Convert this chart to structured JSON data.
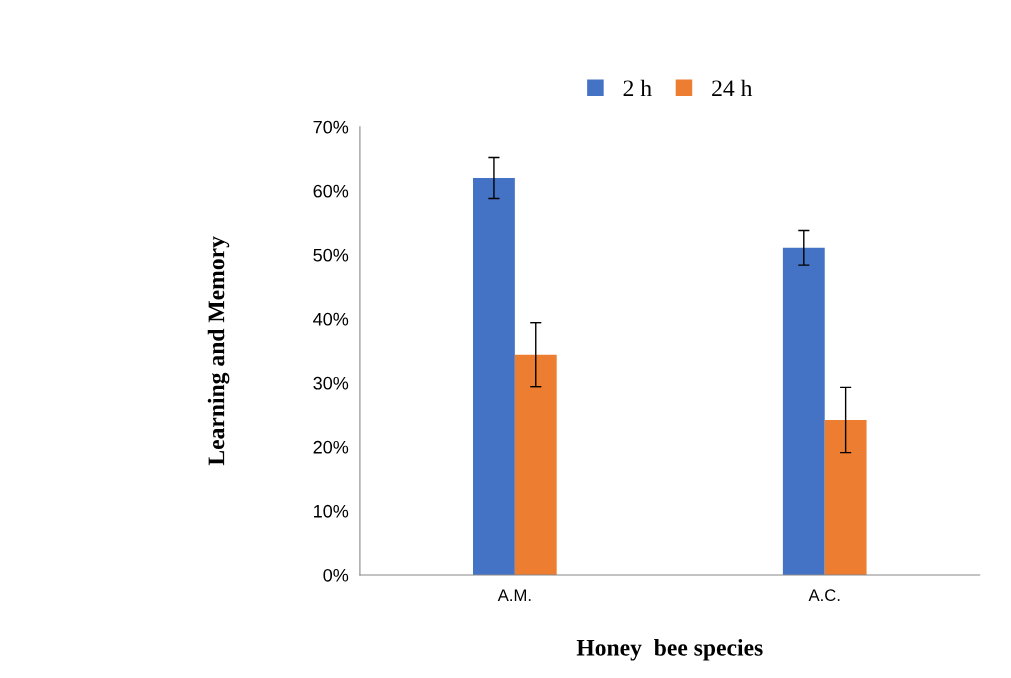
{
  "chart_data": {
    "type": "bar",
    "xlabel": "Honey  bee species",
    "ylabel": "Learning and Memory",
    "categories": [
      "A.M.",
      "A.C."
    ],
    "series": [
      {
        "name": "2 h",
        "color": "#4472c4",
        "values": [
          62,
          51.1
        ],
        "errors": [
          3.2,
          2.7
        ]
      },
      {
        "name": "24 h",
        "color": "#ed7d31",
        "values": [
          34.4,
          24.2
        ],
        "errors": [
          5,
          5.1
        ]
      }
    ],
    "ylim": [
      0,
      70
    ],
    "yticks": [
      {
        "value": 0,
        "label": "0%"
      },
      {
        "value": 10,
        "label": "10%"
      },
      {
        "value": 20,
        "label": "20%"
      },
      {
        "value": 30,
        "label": "30%"
      },
      {
        "value": 40,
        "label": "40%"
      },
      {
        "value": 50,
        "label": "50%"
      },
      {
        "value": 60,
        "label": "60%"
      },
      {
        "value": 70,
        "label": "70%"
      }
    ],
    "grid": false,
    "legend": "top"
  }
}
